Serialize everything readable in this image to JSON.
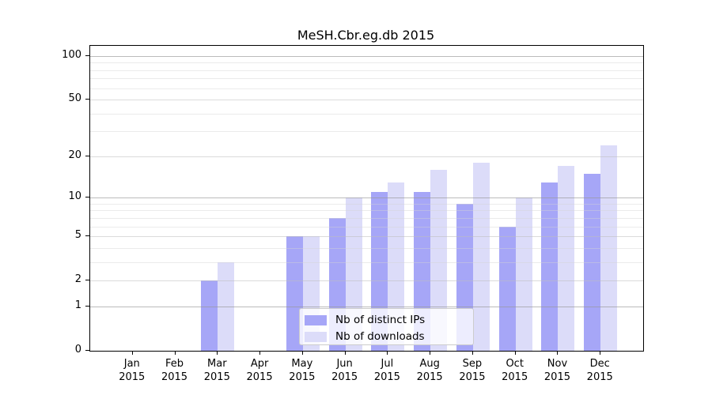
{
  "title": "MeSH.Cbr.eg.db 2015",
  "colors": {
    "ips_bar": "#a6a6f7",
    "downloads_bar": "#dcdcf9",
    "grid_major": "#969696",
    "grid_mid": "#bebebe",
    "grid_minor": "#d2d2d2",
    "axis": "#000000",
    "legend_border": "#cccccc"
  },
  "y_axis": {
    "tick_values": [
      100,
      50,
      20,
      10,
      5,
      2,
      1,
      0
    ],
    "tick_labels": [
      "100",
      "50",
      "20",
      "10",
      "5",
      "2",
      "1",
      "0"
    ],
    "gridline_values_major": [
      1,
      10,
      100
    ],
    "gridline_values_mid": [
      2,
      5,
      20,
      50
    ],
    "gridline_values_minor": [
      3,
      4,
      6,
      7,
      8,
      9,
      30,
      40,
      60,
      70,
      80,
      90
    ]
  },
  "x_axis": {
    "months": [
      "Jan",
      "Feb",
      "Mar",
      "Apr",
      "May",
      "Jun",
      "Jul",
      "Aug",
      "Sep",
      "Oct",
      "Nov",
      "Dec"
    ],
    "year": "2015"
  },
  "legend": {
    "items": [
      {
        "label": "Nb of distinct IPs",
        "color": "#a6a6f7"
      },
      {
        "label": "Nb of downloads",
        "color": "#dcdcf9"
      }
    ]
  },
  "chart_data": {
    "type": "bar",
    "title": "MeSH.Cbr.eg.db 2015",
    "categories": [
      "Jan 2015",
      "Feb 2015",
      "Mar 2015",
      "Apr 2015",
      "May 2015",
      "Jun 2015",
      "Jul 2015",
      "Aug 2015",
      "Sep 2015",
      "Oct 2015",
      "Nov 2015",
      "Dec 2015"
    ],
    "series": [
      {
        "name": "Nb of distinct IPs",
        "color": "#a6a6f7",
        "values": [
          0,
          0,
          2,
          0,
          5,
          7,
          11,
          11,
          9,
          6,
          13,
          15
        ]
      },
      {
        "name": "Nb of downloads",
        "color": "#dcdcf9",
        "values": [
          0,
          0,
          3,
          0,
          5,
          10,
          13,
          16,
          18,
          10,
          17,
          24
        ]
      }
    ],
    "yscale": "log1p",
    "ylim": [
      0,
      118
    ],
    "y_ticks": [
      0,
      1,
      2,
      5,
      10,
      20,
      50,
      100
    ],
    "grid": true,
    "grid_position": "above-bars",
    "legend_position": "lower center"
  }
}
